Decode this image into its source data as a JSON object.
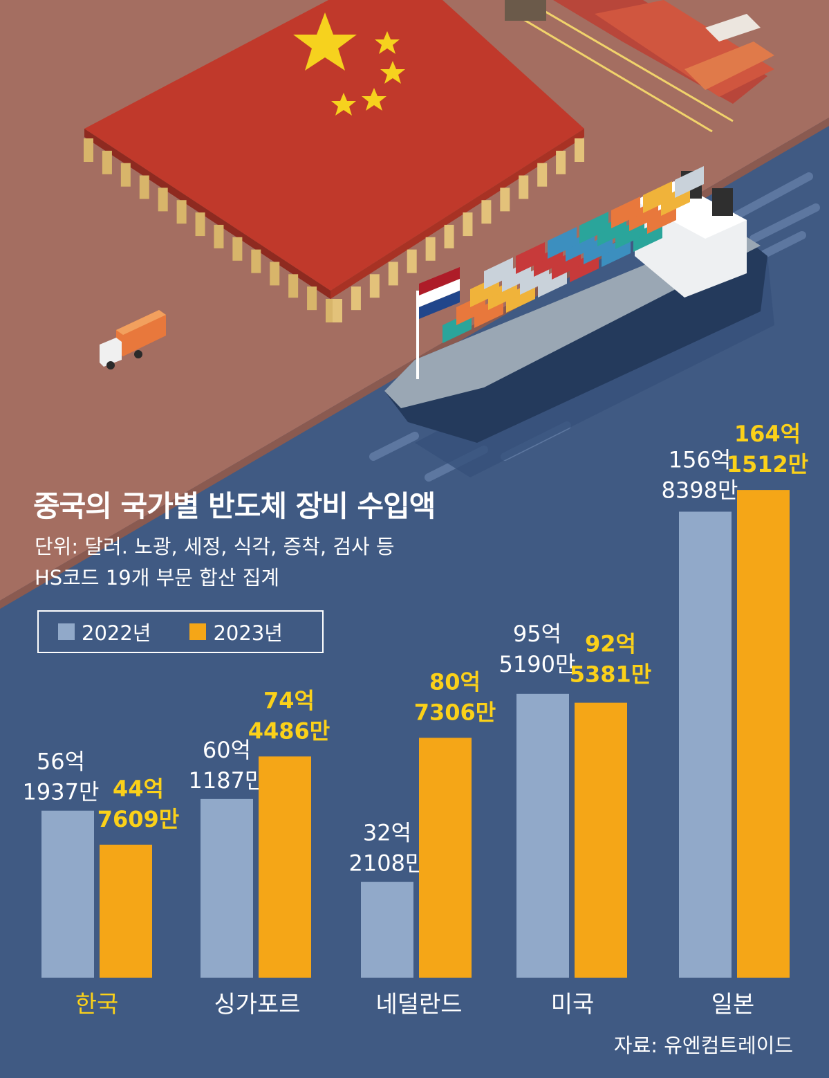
{
  "colors": {
    "series_2022": "#91a9c9",
    "series_2023": "#f5a617",
    "label_2022": "#ffffff",
    "label_2023": "#fbd119",
    "highlight_category": "#fbd119",
    "background": "#405a83",
    "ground": "#a46e61"
  },
  "chart_data": {
    "type": "bar",
    "title": "중국의 국가별 반도체 장비 수입액",
    "subtitle_lines": [
      "단위: 달러. 노광, 세정, 식각, 증착, 검사 등",
      "HS코드 19개 부문 합산 집계"
    ],
    "categories": [
      "한국",
      "싱가포르",
      "네덜란드",
      "미국",
      "일본"
    ],
    "highlight_category": "한국",
    "series": [
      {
        "name": "2022년",
        "values": [
          5619370000,
          6011870000,
          3221080000,
          9551900000,
          15683980000
        ],
        "labels": [
          [
            "56억",
            "1937만"
          ],
          [
            "60억",
            "1187만"
          ],
          [
            "32억",
            "2108만"
          ],
          [
            "95억",
            "5190만"
          ],
          [
            "156억",
            "8398만"
          ]
        ]
      },
      {
        "name": "2023년",
        "values": [
          4476090000,
          7444860000,
          8073060000,
          9253810000,
          16415120000
        ],
        "labels": [
          [
            "44억",
            "7609만"
          ],
          [
            "74억",
            "4486만"
          ],
          [
            "80억",
            "7306만"
          ],
          [
            "92억",
            "5381만"
          ],
          [
            "164억",
            "1512만"
          ]
        ]
      }
    ],
    "ylim": [
      0,
      17000000000
    ],
    "legend_position": "top-left",
    "grid": false,
    "source": "자료: 유엔컴트레이드"
  }
}
